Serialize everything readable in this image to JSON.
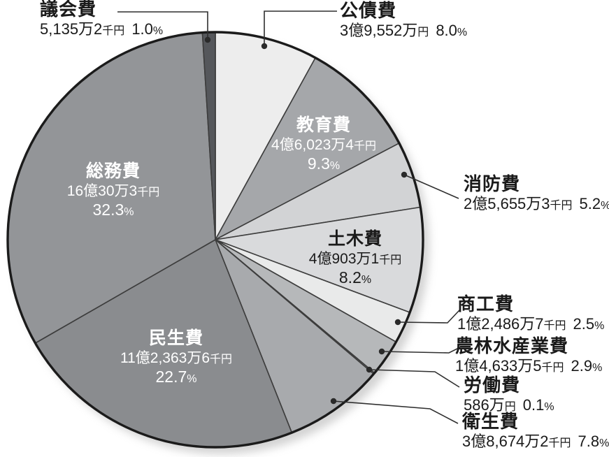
{
  "chart_data": {
    "type": "pie",
    "title": "",
    "legend_position": "callout-labels",
    "order": "clockwise-from-12-oclock",
    "outline_color": "#1b1b1b",
    "slice_border_color": "#3d3d3d",
    "leader_line_color": "#2f2f2f",
    "slices": [
      {
        "name": "公債費",
        "amount": "3億9,552万円",
        "percent": "8.0%",
        "value": 8.0,
        "color": "#ededed",
        "label_placement": "outside",
        "text_color": "#1a1a1a"
      },
      {
        "name": "教育費",
        "amount": "4億6,023万4千円",
        "percent": "9.3%",
        "value": 9.3,
        "color": "#a5a7aa",
        "label_placement": "inside",
        "text_color": "#ffffff"
      },
      {
        "name": "消防費",
        "amount": "2億5,655万3千円",
        "percent": "5.2%",
        "value": 5.2,
        "color": "#d2d3d5",
        "label_placement": "outside",
        "text_color": "#1a1a1a"
      },
      {
        "name": "土木費",
        "amount": "4億903万1千円",
        "percent": "8.2%",
        "value": 8.2,
        "color": "#d9dadc",
        "label_placement": "inside",
        "text_color": "#1a1a1a"
      },
      {
        "name": "商工費",
        "amount": "1億2,486万7千円",
        "percent": "2.5%",
        "value": 2.5,
        "color": "#e9eaea",
        "label_placement": "outside",
        "text_color": "#1a1a1a"
      },
      {
        "name": "農林水産業費",
        "amount": "1億4,633万5千円",
        "percent": "2.9%",
        "value": 2.9,
        "color": "#b6b8ba",
        "label_placement": "outside",
        "text_color": "#1a1a1a"
      },
      {
        "name": "労働費",
        "amount": "586万円",
        "percent": "0.1%",
        "value": 0.1,
        "color": "#97999c",
        "label_placement": "outside",
        "text_color": "#1a1a1a"
      },
      {
        "name": "衛生費",
        "amount": "3億8,674万2千円",
        "percent": "7.8%",
        "value": 7.8,
        "color": "#a8aaad",
        "label_placement": "outside",
        "text_color": "#1a1a1a"
      },
      {
        "name": "民生費",
        "amount": "11億2,363万6千円",
        "percent": "22.7%",
        "value": 22.7,
        "color": "#8a8c8f",
        "label_placement": "inside",
        "text_color": "#ffffff"
      },
      {
        "name": "総務費",
        "amount": "16億30万3千円",
        "percent": "32.3%",
        "value": 32.3,
        "color": "#939598",
        "label_placement": "inside",
        "text_color": "#ffffff"
      },
      {
        "name": "議会費",
        "amount": "5,135万2千円",
        "percent": "1.0%",
        "value": 1.0,
        "color": "#55575b",
        "label_placement": "outside",
        "text_color": "#1a1a1a"
      }
    ]
  }
}
